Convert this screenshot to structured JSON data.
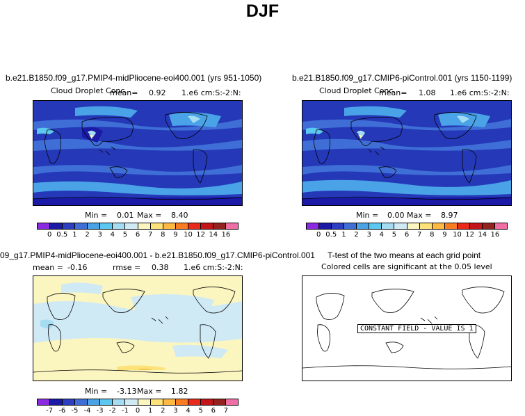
{
  "title": "DJF",
  "panel1": {
    "case": "b.e21.B1850.f09_g17.PMIP4-midPliocene-eoi400.001 (yrs 951-1050)",
    "var": "Cloud Droplet Conc.",
    "mean_label": "mean=",
    "mean": "0.92",
    "units": "1.e6 cm:S:-2:N:",
    "min_label": "Min =",
    "min": "0.01",
    "max_label": "Max =",
    "max": "8.40"
  },
  "panel2": {
    "case": "b.e21.B1850.f09_g17.CMIP6-piControl.001 (yrs 1150-1199)",
    "var": "Cloud Droplet Conc.",
    "mean_label": "mean=",
    "mean": "1.08",
    "units": "1.e6 cm:S:-2:N:",
    "min_label": "Min =",
    "min": "0.00",
    "max_label": "Max =",
    "max": "8.97"
  },
  "panel3": {
    "case": "09_g17.PMIP4-midPliocene-eoi400.001 - b.e21.B1850.f09_g17.CMIP6-piControl.001",
    "mean_label": "mean =",
    "mean": "-0.16",
    "rmse_label": "rmse =",
    "rmse": "0.38",
    "units": "1.e6 cm:S:-2:N:",
    "min_label": "Min =",
    "min": "-3.13",
    "max_label": "Max =",
    "max": "1.82"
  },
  "panel4": {
    "title": "T-test of the two means at each grid point",
    "subtitle": "Colored cells are significant at the 0.05 level",
    "constant_label": "CONSTANT FIELD - VALUE IS 1"
  },
  "colorbar_abs": {
    "ticks": [
      "0",
      "0.5",
      "1",
      "2",
      "3",
      "4",
      "5",
      "6",
      "7",
      "8",
      "9",
      "10",
      "12",
      "14",
      "16"
    ],
    "colors": [
      "#8a2be2",
      "#1a1aa6",
      "#2d3fc0",
      "#3f6fd6",
      "#4aa3e6",
      "#5cc8f0",
      "#a6dcf2",
      "#cfeaf5",
      "#fbf5c0",
      "#fde27a",
      "#fdb941",
      "#f87d22",
      "#e8291b",
      "#c3151a",
      "#94221f",
      "#ef6fa4"
    ]
  },
  "colorbar_diff": {
    "ticks": [
      "-7",
      "-6",
      "-5",
      "-4",
      "-3",
      "-2",
      "-1",
      "0",
      "1",
      "2",
      "3",
      "4",
      "5",
      "6",
      "7"
    ],
    "colors": [
      "#8a2be2",
      "#1a1aa6",
      "#2d3fc0",
      "#3f6fd6",
      "#4aa3e6",
      "#5cc8f0",
      "#a6dcf2",
      "#cfeaf5",
      "#fbf5c0",
      "#fde27a",
      "#fdb941",
      "#f87d22",
      "#e8291b",
      "#c3151a",
      "#94221f",
      "#ef6fa4"
    ]
  }
}
